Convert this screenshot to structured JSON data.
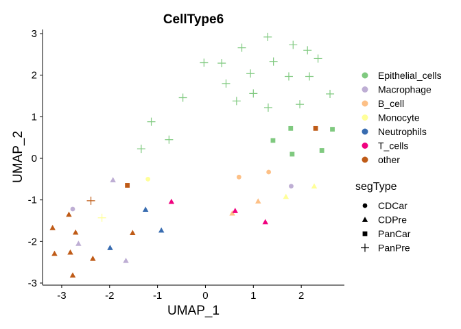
{
  "chart_data": {
    "type": "scatter",
    "title": "CellType6",
    "xlabel": "UMAP_1",
    "ylabel": "UMAP_2",
    "xlim": [
      -3.4,
      2.9
    ],
    "ylim": [
      -3.05,
      3.1
    ],
    "xticks": [
      -3,
      -2,
      -1,
      0,
      1,
      2
    ],
    "yticks": [
      -3,
      -2,
      -1,
      0,
      1,
      2,
      3
    ],
    "grid": false,
    "legend_placement": "right",
    "legend_color_title": "",
    "legend_shape_title": "segType",
    "groups": [
      {
        "name": "Epithelial_cells",
        "color": "#7fc97f"
      },
      {
        "name": "Macrophage",
        "color": "#beaed4"
      },
      {
        "name": "B_cell",
        "color": "#fdc086"
      },
      {
        "name": "Monocyte",
        "color": "#ffff99"
      },
      {
        "name": "Neutrophils",
        "color": "#386cb0"
      },
      {
        "name": "T_cells",
        "color": "#f0027f"
      },
      {
        "name": "other",
        "color": "#bf5b17"
      }
    ],
    "shapes": [
      {
        "name": "CDCar",
        "symbol": "circle"
      },
      {
        "name": "CDPre",
        "symbol": "triangle"
      },
      {
        "name": "PanCar",
        "symbol": "square"
      },
      {
        "name": "PanPre",
        "symbol": "plus"
      }
    ],
    "points": [
      {
        "x": 1.3,
        "y": 2.92,
        "group": "Epithelial_cells",
        "shape": "PanPre"
      },
      {
        "x": 1.83,
        "y": 2.73,
        "group": "Epithelial_cells",
        "shape": "PanPre"
      },
      {
        "x": 0.76,
        "y": 2.66,
        "group": "Epithelial_cells",
        "shape": "PanPre"
      },
      {
        "x": 2.13,
        "y": 2.6,
        "group": "Epithelial_cells",
        "shape": "PanPre"
      },
      {
        "x": 2.35,
        "y": 2.4,
        "group": "Epithelial_cells",
        "shape": "PanPre"
      },
      {
        "x": 1.42,
        "y": 2.33,
        "group": "Epithelial_cells",
        "shape": "PanPre"
      },
      {
        "x": -0.03,
        "y": 2.3,
        "group": "Epithelial_cells",
        "shape": "PanPre"
      },
      {
        "x": 0.34,
        "y": 2.29,
        "group": "Epithelial_cells",
        "shape": "PanPre"
      },
      {
        "x": 0.94,
        "y": 2.04,
        "group": "Epithelial_cells",
        "shape": "PanPre"
      },
      {
        "x": 1.74,
        "y": 1.97,
        "group": "Epithelial_cells",
        "shape": "PanPre"
      },
      {
        "x": 2.17,
        "y": 1.97,
        "group": "Epithelial_cells",
        "shape": "PanPre"
      },
      {
        "x": 0.43,
        "y": 1.8,
        "group": "Epithelial_cells",
        "shape": "PanPre"
      },
      {
        "x": 1.0,
        "y": 1.56,
        "group": "Epithelial_cells",
        "shape": "PanPre"
      },
      {
        "x": 2.6,
        "y": 1.55,
        "group": "Epithelial_cells",
        "shape": "PanPre"
      },
      {
        "x": -0.47,
        "y": 1.46,
        "group": "Epithelial_cells",
        "shape": "PanPre"
      },
      {
        "x": 0.65,
        "y": 1.38,
        "group": "Epithelial_cells",
        "shape": "PanPre"
      },
      {
        "x": 1.97,
        "y": 1.3,
        "group": "Epithelial_cells",
        "shape": "PanPre"
      },
      {
        "x": 1.31,
        "y": 1.22,
        "group": "Epithelial_cells",
        "shape": "PanPre"
      },
      {
        "x": -1.13,
        "y": 0.88,
        "group": "Epithelial_cells",
        "shape": "PanPre"
      },
      {
        "x": -0.76,
        "y": 0.45,
        "group": "Epithelial_cells",
        "shape": "PanPre"
      },
      {
        "x": -1.34,
        "y": 0.23,
        "group": "Epithelial_cells",
        "shape": "PanPre"
      },
      {
        "x": 1.78,
        "y": 0.72,
        "group": "Epithelial_cells",
        "shape": "PanCar"
      },
      {
        "x": 2.65,
        "y": 0.7,
        "group": "Epithelial_cells",
        "shape": "PanCar"
      },
      {
        "x": 1.41,
        "y": 0.43,
        "group": "Epithelial_cells",
        "shape": "PanCar"
      },
      {
        "x": 2.43,
        "y": 0.19,
        "group": "Epithelial_cells",
        "shape": "PanCar"
      },
      {
        "x": 1.81,
        "y": 0.1,
        "group": "Epithelial_cells",
        "shape": "PanCar"
      },
      {
        "x": 2.3,
        "y": 0.72,
        "group": "other",
        "shape": "PanCar"
      },
      {
        "x": 0.7,
        "y": -0.45,
        "group": "B_cell",
        "shape": "CDCar"
      },
      {
        "x": 1.32,
        "y": -0.33,
        "group": "B_cell",
        "shape": "CDCar"
      },
      {
        "x": 1.1,
        "y": -1.03,
        "group": "B_cell",
        "shape": "CDPre"
      },
      {
        "x": 0.56,
        "y": -1.32,
        "group": "B_cell",
        "shape": "CDPre"
      },
      {
        "x": 1.79,
        "y": -0.67,
        "group": "Macrophage",
        "shape": "CDCar"
      },
      {
        "x": 2.27,
        "y": -0.67,
        "group": "Monocyte",
        "shape": "CDPre"
      },
      {
        "x": 1.68,
        "y": -0.92,
        "group": "Monocyte",
        "shape": "CDPre"
      },
      {
        "x": 0.62,
        "y": -1.26,
        "group": "T_cells",
        "shape": "CDPre"
      },
      {
        "x": 1.25,
        "y": -1.53,
        "group": "T_cells",
        "shape": "CDPre"
      },
      {
        "x": -1.93,
        "y": -0.52,
        "group": "Macrophage",
        "shape": "CDPre"
      },
      {
        "x": -1.2,
        "y": -0.5,
        "group": "Monocyte",
        "shape": "CDCar"
      },
      {
        "x": -1.63,
        "y": -0.65,
        "group": "other",
        "shape": "PanCar"
      },
      {
        "x": -0.71,
        "y": -1.04,
        "group": "T_cells",
        "shape": "CDPre"
      },
      {
        "x": -1.25,
        "y": -1.23,
        "group": "Neutrophils",
        "shape": "CDPre"
      },
      {
        "x": -0.92,
        "y": -1.73,
        "group": "Neutrophils",
        "shape": "CDPre"
      },
      {
        "x": -1.99,
        "y": -2.15,
        "group": "Neutrophils",
        "shape": "CDPre"
      },
      {
        "x": -2.39,
        "y": -1.02,
        "group": "other",
        "shape": "PanPre"
      },
      {
        "x": -2.16,
        "y": -1.43,
        "group": "Monocyte",
        "shape": "PanPre"
      },
      {
        "x": -2.77,
        "y": -1.22,
        "group": "Macrophage",
        "shape": "CDCar"
      },
      {
        "x": -2.85,
        "y": -1.35,
        "group": "other",
        "shape": "CDPre"
      },
      {
        "x": -3.19,
        "y": -1.67,
        "group": "other",
        "shape": "CDPre"
      },
      {
        "x": -2.71,
        "y": -1.78,
        "group": "other",
        "shape": "CDPre"
      },
      {
        "x": -1.52,
        "y": -1.79,
        "group": "other",
        "shape": "CDPre"
      },
      {
        "x": -2.65,
        "y": -2.05,
        "group": "Macrophage",
        "shape": "CDPre"
      },
      {
        "x": -3.15,
        "y": -2.29,
        "group": "other",
        "shape": "CDPre"
      },
      {
        "x": -2.82,
        "y": -2.26,
        "group": "other",
        "shape": "CDPre"
      },
      {
        "x": -2.35,
        "y": -2.41,
        "group": "other",
        "shape": "CDPre"
      },
      {
        "x": -1.66,
        "y": -2.46,
        "group": "Macrophage",
        "shape": "CDPre"
      },
      {
        "x": -2.77,
        "y": -2.81,
        "group": "other",
        "shape": "CDPre"
      }
    ]
  }
}
